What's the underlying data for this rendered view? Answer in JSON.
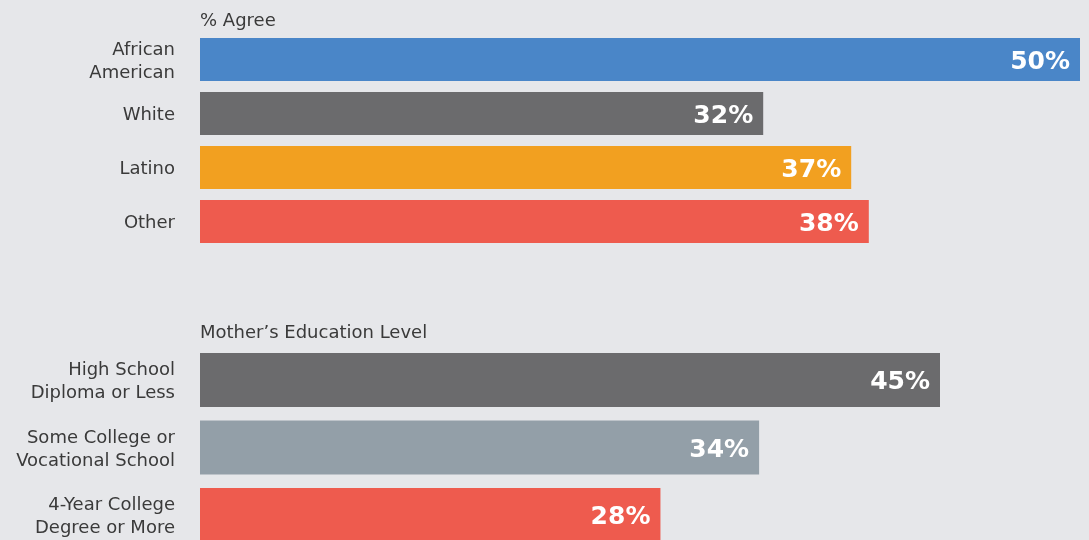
{
  "chart_data": [
    {
      "type": "bar",
      "orientation": "horizontal",
      "title": "% Agree",
      "categories": [
        "African American",
        "White",
        "Latino",
        "Other"
      ],
      "values": [
        50,
        32,
        37,
        38
      ],
      "colors": [
        "#4a86c8",
        "#6b6b6d",
        "#f2a020",
        "#ee5b4e"
      ],
      "value_labels": [
        "50%",
        "32%",
        "37%",
        "38%"
      ]
    },
    {
      "type": "bar",
      "orientation": "horizontal",
      "title": "Mother’s Education Level",
      "categories": [
        "High School Diploma or Less",
        "Some College or Vocational School",
        "4-Year College Degree or More"
      ],
      "values": [
        45,
        34,
        28
      ],
      "colors": [
        "#6b6b6d",
        "#939fa8",
        "#ee5b4e"
      ],
      "value_labels": [
        "45%",
        "34%",
        "28%"
      ]
    }
  ]
}
